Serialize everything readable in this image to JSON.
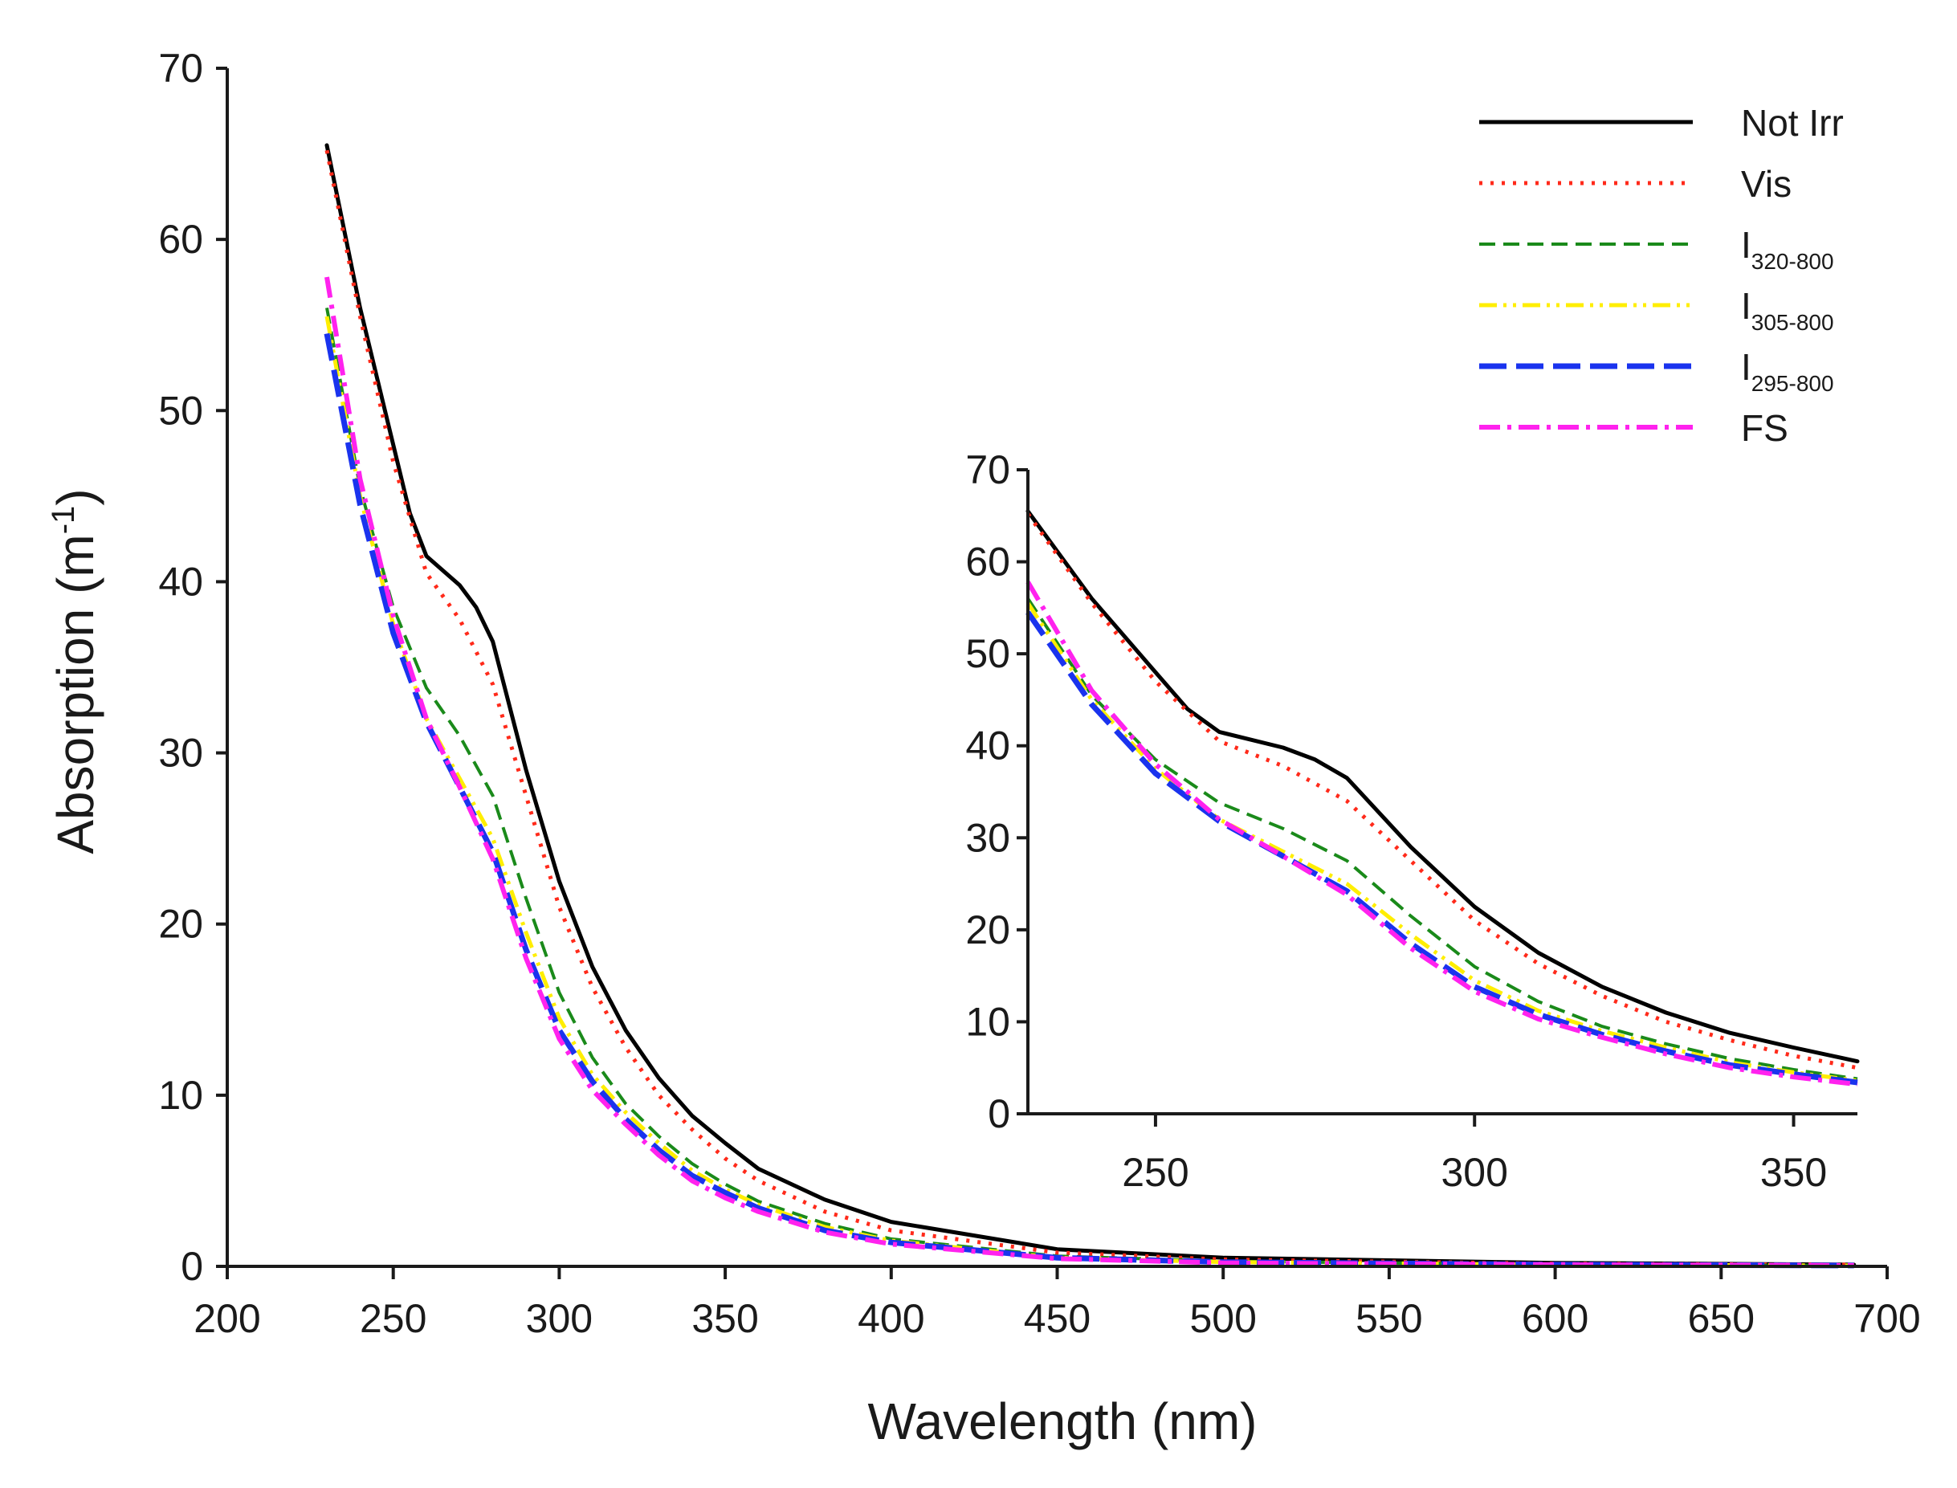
{
  "chart_data": [
    {
      "id": "main",
      "type": "line",
      "xlabel": "Wavelength (nm)",
      "ylabel_base": "Absorption (m",
      "ylabel_sup": "-1",
      "ylabel_close": ")",
      "xlim": [
        200,
        700
      ],
      "ylim": [
        0,
        70
      ],
      "xticks": [
        200,
        250,
        300,
        350,
        400,
        450,
        500,
        550,
        600,
        650,
        700
      ],
      "yticks": [
        0,
        10,
        20,
        30,
        40,
        50,
        60,
        70
      ]
    },
    {
      "id": "inset",
      "type": "line",
      "xlim": [
        230,
        360
      ],
      "ylim": [
        0,
        70
      ],
      "xticks": [
        250,
        300,
        350
      ],
      "yticks": [
        0,
        10,
        20,
        30,
        40,
        50,
        60,
        70
      ]
    }
  ],
  "series": [
    {
      "name": "Not Irr",
      "sub": "",
      "color": "#000000",
      "dash": "",
      "width": 5,
      "points": [
        [
          230,
          65.5
        ],
        [
          240,
          56
        ],
        [
          250,
          48
        ],
        [
          255,
          44
        ],
        [
          260,
          41.5
        ],
        [
          270,
          39.8
        ],
        [
          275,
          38.5
        ],
        [
          280,
          36.5
        ],
        [
          290,
          29
        ],
        [
          300,
          22.5
        ],
        [
          310,
          17.5
        ],
        [
          320,
          13.8
        ],
        [
          330,
          11
        ],
        [
          340,
          8.8
        ],
        [
          350,
          7.2
        ],
        [
          360,
          5.7
        ],
        [
          380,
          3.9
        ],
        [
          400,
          2.6
        ],
        [
          450,
          1.0
        ],
        [
          500,
          0.5
        ],
        [
          600,
          0.2
        ],
        [
          690,
          0.1
        ]
      ]
    },
    {
      "name": "Vis",
      "sub": "",
      "color": "#ff2a1a",
      "dash": "4 10",
      "width": 5,
      "points": [
        [
          230,
          65.2
        ],
        [
          240,
          55.5
        ],
        [
          250,
          47
        ],
        [
          260,
          40.5
        ],
        [
          270,
          37.8
        ],
        [
          280,
          34
        ],
        [
          290,
          27.5
        ],
        [
          300,
          21
        ],
        [
          310,
          16.3
        ],
        [
          320,
          12.8
        ],
        [
          330,
          10
        ],
        [
          340,
          8
        ],
        [
          350,
          6.3
        ],
        [
          360,
          5
        ],
        [
          380,
          3.2
        ],
        [
          400,
          2.1
        ],
        [
          450,
          0.8
        ],
        [
          500,
          0.4
        ],
        [
          600,
          0.15
        ],
        [
          690,
          0.1
        ]
      ]
    },
    {
      "name": "I",
      "sub": "320-800",
      "color": "#1a8a1a",
      "dash": "20 10",
      "width": 4,
      "points": [
        [
          230,
          56
        ],
        [
          240,
          45.5
        ],
        [
          250,
          38.5
        ],
        [
          260,
          33.8
        ],
        [
          270,
          31
        ],
        [
          280,
          27.5
        ],
        [
          290,
          21.5
        ],
        [
          300,
          16
        ],
        [
          310,
          12.2
        ],
        [
          320,
          9.5
        ],
        [
          330,
          7.6
        ],
        [
          340,
          6
        ],
        [
          350,
          4.8
        ],
        [
          360,
          3.8
        ],
        [
          380,
          2.5
        ],
        [
          400,
          1.6
        ],
        [
          450,
          0.6
        ],
        [
          500,
          0.3
        ],
        [
          600,
          0.1
        ],
        [
          690,
          0.05
        ]
      ]
    },
    {
      "name": "I",
      "sub": "305-800",
      "color": "#ffee00",
      "dash": "22 8 4 8 4 8",
      "width": 5,
      "points": [
        [
          230,
          55.5
        ],
        [
          240,
          45
        ],
        [
          250,
          37.5
        ],
        [
          260,
          32
        ],
        [
          270,
          28.5
        ],
        [
          280,
          25
        ],
        [
          290,
          19.5
        ],
        [
          300,
          14.5
        ],
        [
          310,
          11.2
        ],
        [
          320,
          9
        ],
        [
          330,
          7.2
        ],
        [
          340,
          5.6
        ],
        [
          350,
          4.5
        ],
        [
          360,
          3.6
        ],
        [
          380,
          2.3
        ],
        [
          400,
          1.5
        ],
        [
          450,
          0.5
        ],
        [
          500,
          0.25
        ],
        [
          600,
          0.1
        ],
        [
          690,
          0.05
        ]
      ]
    },
    {
      "name": "I",
      "sub": "295-800",
      "color": "#1a33ee",
      "dash": "34 12",
      "width": 7,
      "points": [
        [
          230,
          54.5
        ],
        [
          240,
          44.5
        ],
        [
          250,
          37
        ],
        [
          260,
          31.8
        ],
        [
          270,
          28
        ],
        [
          280,
          24.2
        ],
        [
          290,
          18.5
        ],
        [
          300,
          13.8
        ],
        [
          310,
          10.8
        ],
        [
          320,
          8.6
        ],
        [
          330,
          6.8
        ],
        [
          340,
          5.3
        ],
        [
          350,
          4.3
        ],
        [
          360,
          3.4
        ],
        [
          380,
          2.1
        ],
        [
          400,
          1.4
        ],
        [
          450,
          0.5
        ],
        [
          500,
          0.25
        ],
        [
          600,
          0.1
        ],
        [
          690,
          0.05
        ]
      ]
    },
    {
      "name": "FS",
      "sub": "",
      "color": "#ff22ee",
      "dash": "26 9 5 9",
      "width": 6,
      "points": [
        [
          230,
          57.8
        ],
        [
          240,
          46
        ],
        [
          250,
          38
        ],
        [
          260,
          32
        ],
        [
          270,
          28
        ],
        [
          280,
          23.8
        ],
        [
          290,
          18
        ],
        [
          300,
          13.3
        ],
        [
          310,
          10.3
        ],
        [
          320,
          8.3
        ],
        [
          330,
          6.5
        ],
        [
          340,
          5
        ],
        [
          350,
          4
        ],
        [
          360,
          3.2
        ],
        [
          380,
          2
        ],
        [
          400,
          1.3
        ],
        [
          450,
          0.45
        ],
        [
          500,
          0.2
        ],
        [
          600,
          0.1
        ],
        [
          690,
          0.05
        ]
      ]
    }
  ]
}
